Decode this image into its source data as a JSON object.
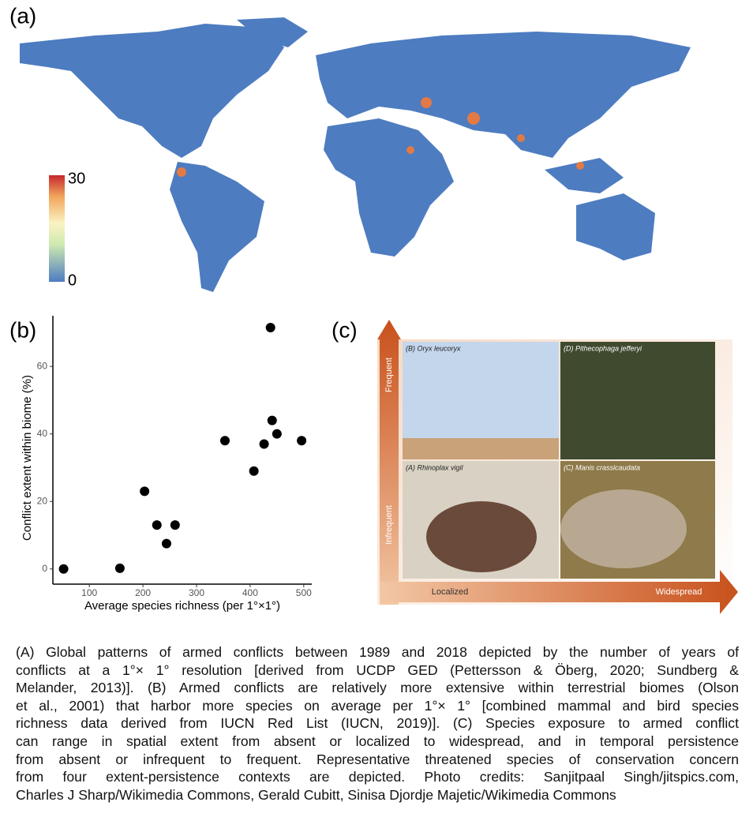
{
  "panels": {
    "a": {
      "letter": "(a)",
      "colorbar": {
        "min_label": "0",
        "max_label": "30"
      }
    },
    "b": {
      "letter": "(b)",
      "chart_data": {
        "type": "scatter",
        "x_label": "Average species richness (per 1°×1°)",
        "y_label": "Conflict extent within biome (%)",
        "x": [
          52,
          157,
          203,
          226,
          260,
          244,
          353,
          426,
          407,
          438,
          441,
          450,
          496
        ],
        "y": [
          0,
          0.2,
          23,
          13,
          13,
          7.5,
          38,
          37,
          29,
          71.5,
          44,
          40,
          38
        ],
        "color": "#000000",
        "xlim": [
          32,
          515
        ],
        "ylim": [
          -4.5,
          75
        ],
        "xticks": [
          100,
          200,
          300,
          400,
          500
        ],
        "yticks": [
          0,
          20,
          40,
          60
        ]
      }
    },
    "c": {
      "letter": "(c)",
      "y_high": "Frequent",
      "y_low": "Infrequent",
      "x_low": "Localized",
      "x_high": "Widespread",
      "photos": [
        "(B) Oryx leucoryx",
        "(D) Pithecophaga jefferyi",
        "(A) Rhinoplax vigil",
        "(C) Manis crassicaudata"
      ]
    }
  },
  "caption": [
    "(A) Global patterns of armed conflicts between 1989 and 2018 depicted by the number of years of",
    "conflicts at a 1°× 1° resolution [derived from UCDP GED (Pettersson & Öberg, 2020; Sundberg &",
    "Melander, 2013)]. (B) Armed conflicts are relatively more extensive within terrestrial biomes (Olson",
    "et al., 2001) that harbor more species on average per 1°× 1° [combined mammal and bird species",
    "richness data derived from IUCN Red List (IUCN, 2019)]. (C) Species exposure to armed conflict",
    "can range in spatial extent from absent or localized to widespread, and in temporal persistence",
    "from absent or infrequent to frequent. Representative threatened species of conservation concern",
    "from four extent-persistence contexts are depicted. Photo credits: Sanjitpaal Singh/jitspics.com,",
    "Charles J Sharp/Wikimedia Commons, Gerald Cubitt, Sinisa Djordje Majetic/Wikimedia Commons"
  ]
}
